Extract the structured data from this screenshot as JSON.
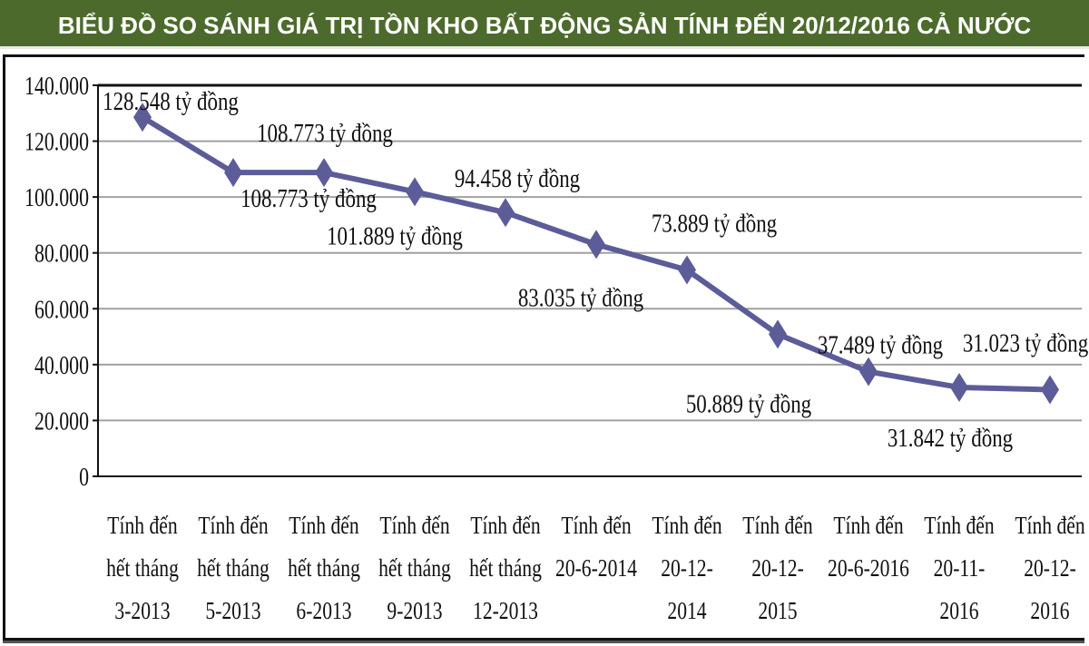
{
  "chart_data": {
    "type": "line",
    "title": "BIỂU ĐỒ SO SÁNH GIÁ TRỊ TỒN KHO BẤT ĐỘNG SẢN TÍNH ĐẾN 20/12/2016 CẢ NƯỚC",
    "categories": [
      [
        "Tính đến",
        "hết tháng",
        "3-2013"
      ],
      [
        "Tính đến",
        "hết tháng",
        "5-2013"
      ],
      [
        "Tính đến",
        "hết tháng",
        "6-2013"
      ],
      [
        "Tính đến",
        "hết tháng",
        "9-2013"
      ],
      [
        "Tính đến",
        "hết tháng",
        "12-2013"
      ],
      [
        "Tính đến",
        "20-6-2014"
      ],
      [
        "Tính đến",
        "20-12-",
        "2014"
      ],
      [
        "Tính đến",
        "20-12-",
        "2015"
      ],
      [
        "Tính đến",
        "20-6-2016"
      ],
      [
        "Tính đến",
        "20-11-",
        "2016"
      ],
      [
        "Tính đến",
        "20-12-",
        "2016"
      ]
    ],
    "values": [
      128548,
      108773,
      108773,
      101889,
      94458,
      83035,
      73889,
      50889,
      37489,
      31842,
      31023
    ],
    "data_labels": [
      "128.548 tỷ đồng",
      "108.773 tỷ đồng",
      "108.773 tỷ đồng",
      "101.889 tỷ đồng",
      "94.458 tỷ đồng",
      "83.035 tỷ đồng",
      "73.889 tỷ đồng",
      "50.889 tỷ đồng",
      "37.489 tỷ đồng",
      "31.842 tỷ đồng",
      "31.023 tỷ đồng"
    ],
    "ylim": [
      0,
      140000
    ],
    "yticks": [
      0,
      20000,
      40000,
      60000,
      80000,
      100000,
      120000,
      140000
    ],
    "ytick_labels": [
      "0",
      "20.000",
      "40.000",
      "60.000",
      "80.000",
      "100.000",
      "120.000",
      "140.000"
    ],
    "grid": true,
    "marker": "diamond",
    "colors": {
      "line": "#5c5c99",
      "title_bar": "#4d6a2d",
      "grid": "#a0a0a0"
    }
  }
}
